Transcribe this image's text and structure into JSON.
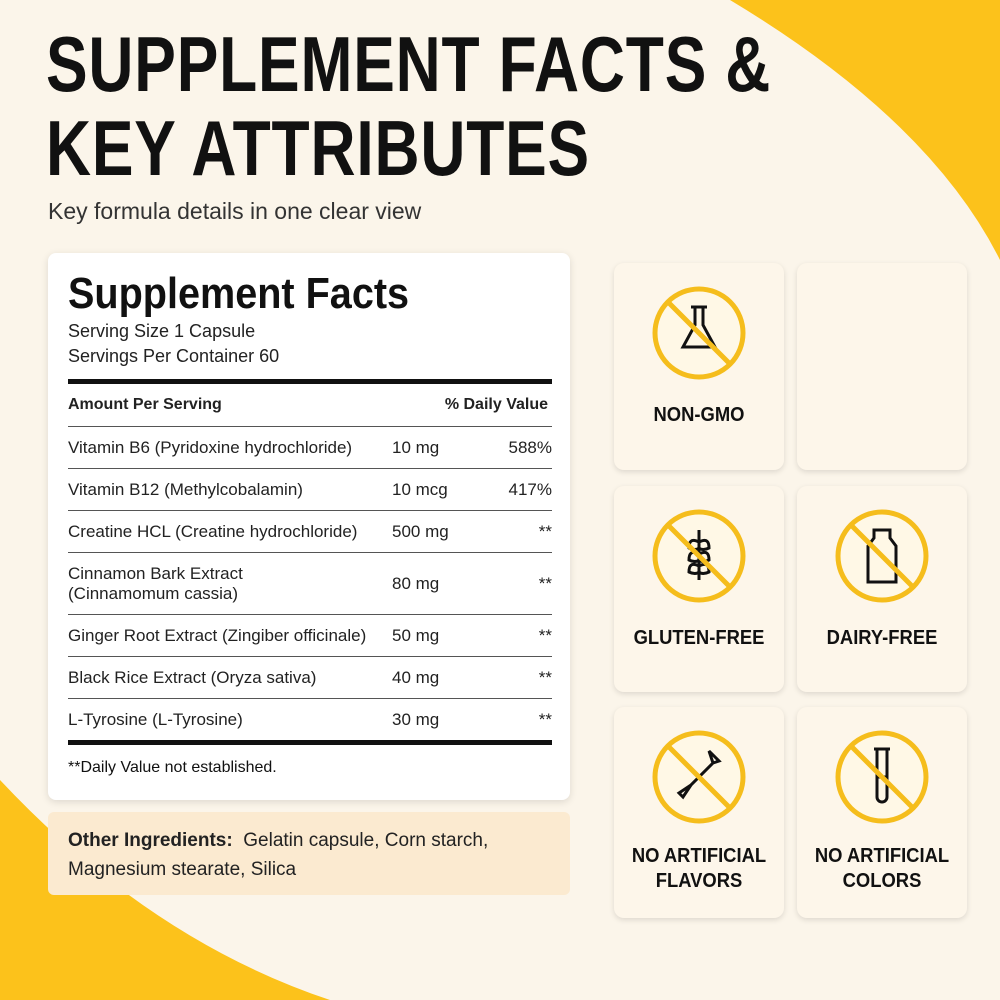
{
  "header": {
    "title_lines": [
      "SUPPLEMENT FACTS &",
      "KEY ATTRIBUTES"
    ],
    "subtitle": "Key formula details in one clear view"
  },
  "facts": {
    "title": "Supplement Facts",
    "serving_size": "Serving Size 1 Capsule",
    "servings": "Servings Per Container 60",
    "columns": [
      "Amount Per Serving",
      "% Daily Value"
    ],
    "rows": [
      {
        "name": [
          "Vitamin B6 (Pyridoxine hydrochloride)"
        ],
        "amount": "10 mg",
        "dv": "588%"
      },
      {
        "name": [
          "Vitamin B12 (Methylcobalamin)"
        ],
        "amount": "10 mcg",
        "dv": "417%"
      },
      {
        "name": [
          "Creatine HCL (Creatine hydrochloride)"
        ],
        "amount": "500 mg",
        "dv": "**"
      },
      {
        "name": [
          "Cinnamon Bark Extract",
          "(Cinnamomum cassia)"
        ],
        "amount": "80 mg",
        "dv": "**"
      },
      {
        "name": [
          "Ginger Root Extract (Zingiber officinale)"
        ],
        "amount": "50 mg",
        "dv": "**"
      },
      {
        "name": [
          "Black Rice Extract (Oryza sativa)"
        ],
        "amount": "40 mg",
        "dv": "**"
      },
      {
        "name": [
          "L-Tyrosine  (L-Tyrosine)"
        ],
        "amount": "30 mg",
        "dv": "**"
      }
    ],
    "footnote": "**Daily Value not established."
  },
  "other_ingredients": {
    "label": "Other Ingredients:",
    "text": "Gelatin capsule, Corn starch, Magnesium stearate, Silica"
  },
  "attributes": [
    {
      "lines": [
        "NON-GMO"
      ]
    },
    {
      "lines": [
        "GLUTEN-FREE"
      ]
    },
    {
      "lines": [
        "DAIRY-FREE"
      ]
    },
    {
      "lines": [
        "NO ARTIFICIAL",
        "FLAVORS"
      ]
    },
    {
      "lines": [
        "NO ARTIFICIAL",
        "COLORS"
      ]
    }
  ]
}
